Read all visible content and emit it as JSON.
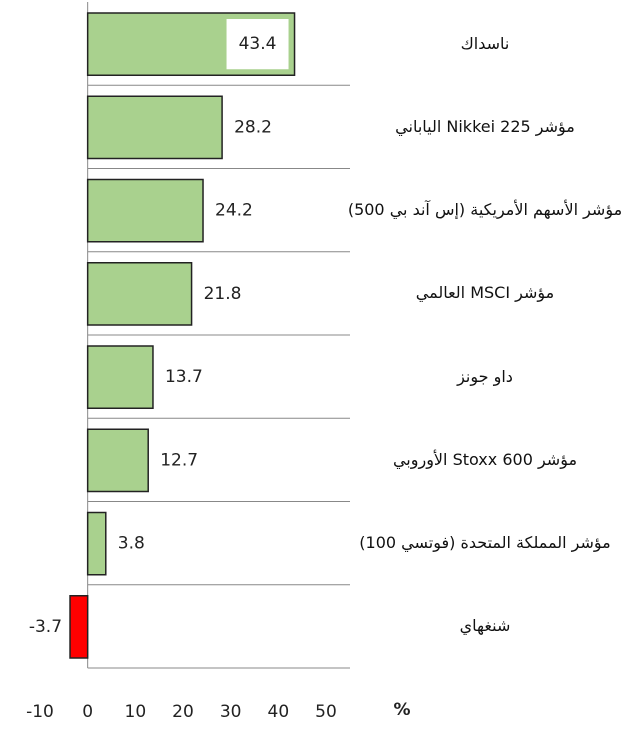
{
  "chart_data": {
    "type": "bar",
    "orientation": "horizontal",
    "categories": [
      "ناسداك",
      "مؤشر Nikkei 225 الياباني",
      "مؤشر الأسهم الأمريكية (إس آند بي 500)",
      "مؤشر MSCI العالمي",
      "داو جونز",
      "مؤشر Stoxx 600 الأوروبي",
      "مؤشر المملكة المتحدة (فوتسي 100)",
      "شنغهاي"
    ],
    "values": [
      43.4,
      28.2,
      24.2,
      21.8,
      13.7,
      12.7,
      3.8,
      -3.7
    ],
    "color": "#a9d18e",
    "negative_color": "#ff0000",
    "xlim": [
      -10,
      50
    ],
    "xticks": [
      -10,
      0,
      10,
      20,
      30,
      40,
      50
    ],
    "x_label": "%"
  }
}
